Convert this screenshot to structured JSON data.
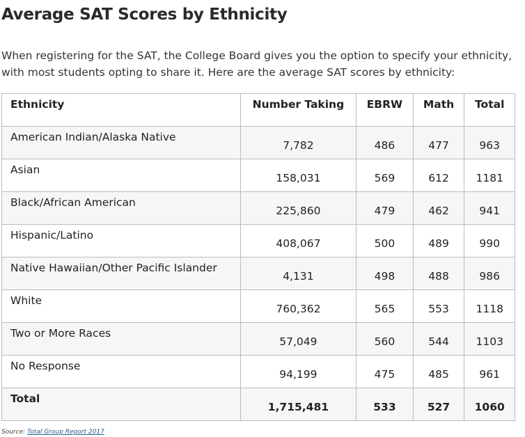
{
  "title": "Average SAT Scores by Ethnicity",
  "intro": "When registering for the SAT, the College Board gives you the option to specify your ethnicity, with most students opting to share it. Here are the average SAT scores by ethnicity:",
  "table": {
    "headers": [
      "Ethnicity",
      "Number Taking",
      "EBRW",
      "Math",
      "Total"
    ],
    "rows": [
      [
        "American Indian/Alaska Native",
        "7,782",
        "486",
        "477",
        "963"
      ],
      [
        "Asian",
        "158,031",
        "569",
        "612",
        "1181"
      ],
      [
        "Black/African American",
        "225,860",
        "479",
        "462",
        "941"
      ],
      [
        "Hispanic/Latino",
        "408,067",
        "500",
        "489",
        "990"
      ],
      [
        "Native Hawaiian/Other Pacific Islander",
        "4,131",
        "498",
        "488",
        "986"
      ],
      [
        "White",
        "760,362",
        "565",
        "553",
        "1118"
      ],
      [
        "Two or More Races",
        "57,049",
        "560",
        "544",
        "1103"
      ],
      [
        "No Response",
        "94,199",
        "475",
        "485",
        "961"
      ]
    ],
    "total": [
      "Total",
      "1,715,481",
      "533",
      "527",
      "1060"
    ]
  },
  "source": {
    "label": "Source:",
    "link_text": "Total Group Report 2017"
  }
}
